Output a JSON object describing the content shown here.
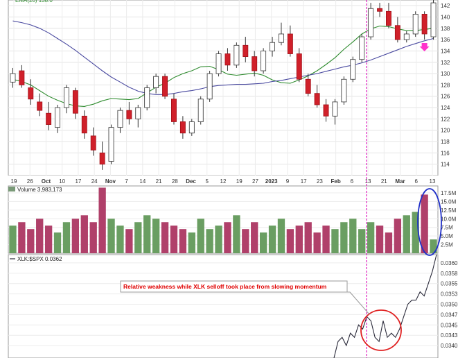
{
  "chart_data": [
    {
      "type": "candlestick",
      "panel": "price",
      "legend_partial": "EMA(20) 138.0",
      "ylim": [
        112,
        143
      ],
      "y_ticks": [
        114,
        116,
        118,
        120,
        122,
        124,
        126,
        128,
        130,
        132,
        134,
        136,
        138,
        140,
        142
      ],
      "x_tick_labels": [
        "19",
        "26",
        "Oct",
        "10",
        "17",
        "24",
        "Nov",
        "7",
        "14",
        "21",
        "28",
        "Dec",
        "5",
        "12",
        "19",
        "27",
        "2023",
        "9",
        "17",
        "23",
        "Feb",
        "6",
        "13",
        "21",
        "Mar",
        "6",
        "13"
      ],
      "moving_averages": [
        {
          "color": "#2e8b2e",
          "values": [
            129,
            128.6,
            128,
            127,
            126,
            125.3,
            124.7,
            124.3,
            124.2,
            124.6,
            125.2,
            125.6,
            125.5,
            125.4,
            125.6,
            126.6,
            127.6,
            128.3,
            129.3,
            130,
            130.5,
            131.2,
            131.3,
            130.7,
            129.9,
            129.7,
            129.9,
            130.1,
            129.7,
            128.9,
            128.4,
            128.3,
            128.9,
            129.6,
            130.5,
            131.6,
            132.8,
            134.3,
            135.6,
            137,
            137.9,
            138.4,
            138.3,
            137.9,
            137.6,
            137.6,
            137.8,
            138
          ]
        },
        {
          "color": "#4a4aa0",
          "values": [
            139.3,
            139,
            138.6,
            138,
            137.2,
            136.2,
            135.2,
            134.1,
            132.9,
            131.7,
            130.5,
            129.4,
            128.5,
            127.6,
            126.9,
            126.5,
            126.3,
            126.3,
            126.5,
            126.8,
            127,
            127.3,
            127.7,
            127.9,
            128,
            128.1,
            128.1,
            128.2,
            128.3,
            128.6,
            128.8,
            129.1,
            129.4,
            129.7,
            130,
            130.4,
            130.8,
            131.2,
            131.5,
            131.9,
            132.4,
            133,
            133.6,
            134.2,
            134.8,
            135.3,
            135.8,
            136.2
          ]
        }
      ],
      "candles": [
        {
          "o": 128.5,
          "h": 131,
          "l": 127.5,
          "c": 130
        },
        {
          "o": 130.5,
          "h": 131.5,
          "l": 127.5,
          "c": 128
        },
        {
          "o": 127.5,
          "h": 129,
          "l": 124.5,
          "c": 125.5
        },
        {
          "o": 125,
          "h": 126.5,
          "l": 122.5,
          "c": 123.5
        },
        {
          "o": 123,
          "h": 125,
          "l": 120,
          "c": 121
        },
        {
          "o": 120.5,
          "h": 124.5,
          "l": 119.5,
          "c": 124
        },
        {
          "o": 124,
          "h": 128,
          "l": 123,
          "c": 127.5
        },
        {
          "o": 127,
          "h": 127.5,
          "l": 122,
          "c": 123
        },
        {
          "o": 122.5,
          "h": 123.5,
          "l": 118.5,
          "c": 119.5
        },
        {
          "o": 119,
          "h": 120.5,
          "l": 115.5,
          "c": 116.5
        },
        {
          "o": 116,
          "h": 118,
          "l": 113,
          "c": 114
        },
        {
          "o": 114.5,
          "h": 121,
          "l": 114,
          "c": 120.5
        },
        {
          "o": 120.5,
          "h": 124,
          "l": 119.5,
          "c": 123.5
        },
        {
          "o": 123.5,
          "h": 125,
          "l": 121,
          "c": 122
        },
        {
          "o": 122,
          "h": 124.5,
          "l": 120.5,
          "c": 124
        },
        {
          "o": 124,
          "h": 128,
          "l": 123.5,
          "c": 127.5
        },
        {
          "o": 127.5,
          "h": 130,
          "l": 126.5,
          "c": 129.5
        },
        {
          "o": 129.5,
          "h": 130,
          "l": 125.5,
          "c": 126
        },
        {
          "o": 125.5,
          "h": 126.5,
          "l": 121,
          "c": 121.5
        },
        {
          "o": 121.5,
          "h": 122.5,
          "l": 118.5,
          "c": 119.5
        },
        {
          "o": 119.5,
          "h": 122,
          "l": 119,
          "c": 121.5
        },
        {
          "o": 121.5,
          "h": 126,
          "l": 121,
          "c": 125.5
        },
        {
          "o": 125.5,
          "h": 130.5,
          "l": 125,
          "c": 130
        },
        {
          "o": 130,
          "h": 134,
          "l": 129.5,
          "c": 133.5
        },
        {
          "o": 133.5,
          "h": 134.5,
          "l": 130.5,
          "c": 131.5
        },
        {
          "o": 131.5,
          "h": 135.5,
          "l": 131,
          "c": 135
        },
        {
          "o": 135,
          "h": 136.5,
          "l": 132,
          "c": 133
        },
        {
          "o": 133,
          "h": 134,
          "l": 129.5,
          "c": 130.5
        },
        {
          "o": 130.5,
          "h": 134.5,
          "l": 130,
          "c": 134
        },
        {
          "o": 134,
          "h": 136.5,
          "l": 133,
          "c": 135.5
        },
        {
          "o": 135.5,
          "h": 139,
          "l": 135,
          "c": 137
        },
        {
          "o": 137,
          "h": 138.5,
          "l": 133,
          "c": 133.5
        },
        {
          "o": 133.5,
          "h": 134.5,
          "l": 128.5,
          "c": 129
        },
        {
          "o": 129,
          "h": 130,
          "l": 126,
          "c": 126.5
        },
        {
          "o": 126.5,
          "h": 128,
          "l": 124,
          "c": 124.5
        },
        {
          "o": 124.5,
          "h": 125.5,
          "l": 121.5,
          "c": 122.5
        },
        {
          "o": 122.5,
          "h": 125.5,
          "l": 121,
          "c": 125
        },
        {
          "o": 125,
          "h": 129.5,
          "l": 124.5,
          "c": 129
        },
        {
          "o": 129,
          "h": 133,
          "l": 128.5,
          "c": 132.5
        },
        {
          "o": 132.5,
          "h": 137,
          "l": 132,
          "c": 136.5
        },
        {
          "o": 136.5,
          "h": 142.5,
          "l": 136,
          "c": 141.5
        },
        {
          "o": 141.5,
          "h": 142.5,
          "l": 140,
          "c": 141
        },
        {
          "o": 141,
          "h": 142.5,
          "l": 138,
          "c": 138.5
        },
        {
          "o": 138.5,
          "h": 140,
          "l": 135.5,
          "c": 136
        },
        {
          "o": 136,
          "h": 137.5,
          "l": 135.5,
          "c": 137
        },
        {
          "o": 137,
          "h": 141,
          "l": 136.5,
          "c": 140.5
        },
        {
          "o": 140.5,
          "h": 141,
          "l": 136,
          "c": 137
        },
        {
          "o": 136.5,
          "h": 143,
          "l": 136,
          "c": 142.5
        }
      ]
    },
    {
      "type": "bar",
      "panel": "volume",
      "title": "Volume 3,983,173",
      "ylim": [
        0,
        19.5
      ],
      "y_tick_labels": [
        "2.5M",
        "5.0M",
        "7.5M",
        "10.0M",
        "12.5M",
        "15.0M",
        "17.5M"
      ],
      "y_tick_values": [
        2.5,
        5,
        7.5,
        10,
        12.5,
        15,
        17.5
      ],
      "values": [
        8,
        9,
        7,
        10,
        8,
        6,
        9,
        10,
        11,
        9,
        19,
        10,
        8,
        7,
        9,
        11,
        10,
        9,
        8,
        7,
        6,
        10,
        7,
        8,
        9,
        11,
        7,
        9,
        6,
        8,
        10,
        7,
        8,
        9,
        6,
        8,
        7,
        9,
        10,
        7,
        9,
        8,
        6,
        10,
        11,
        12,
        17,
        4
      ]
    },
    {
      "type": "line",
      "panel": "ratio",
      "title": "XLK:$SPX 0.0362",
      "ylim": [
        0.0337,
        0.0362
      ],
      "y_tick_labels": [
        "0.0340",
        "0.0343",
        "0.0345",
        "0.0347",
        "0.0350",
        "0.0353",
        "0.0355",
        "0.0358",
        "0.0360"
      ],
      "y_tick_values": [
        0.034,
        0.03425,
        0.0345,
        0.03475,
        0.035,
        0.03525,
        0.0355,
        0.03575,
        0.036
      ],
      "values": [
        0.0337,
        0.0341,
        0.0342,
        0.034,
        0.0343,
        0.0342,
        0.0345,
        0.0344,
        0.0347,
        0.0346,
        0.0342,
        0.0341,
        0.0346,
        0.0342,
        0.0343,
        0.0342,
        0.0344,
        0.0347,
        0.035,
        0.0351,
        0.0351,
        0.0353,
        0.0352,
        0.0355,
        0.0358,
        0.0362
      ],
      "annotation": "Relative weakness while XLK selloff took place from slowing momentum"
    }
  ]
}
